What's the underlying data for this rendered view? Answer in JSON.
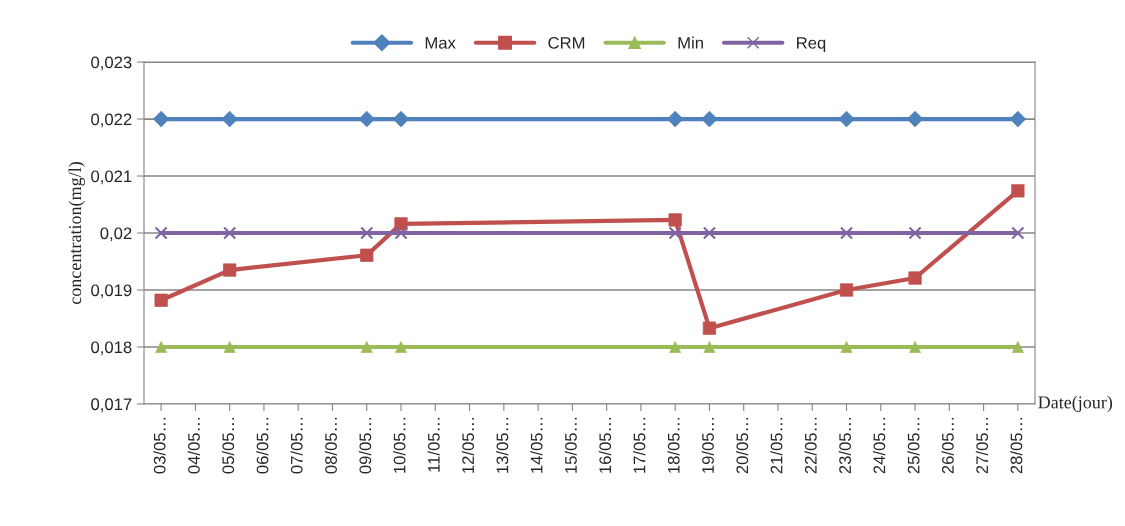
{
  "chart_data": {
    "type": "line",
    "xlabel": "Date(jour)",
    "ylabel": "concentration(mg/l)",
    "categories": [
      "03/05…",
      "04/05…",
      "05/05…",
      "06/05…",
      "07/05…",
      "08/05…",
      "09/05…",
      "10/05…",
      "11/05…",
      "12/05…",
      "13/05…",
      "14/05…",
      "15/05…",
      "16/05…",
      "17/05…",
      "18/05…",
      "19/05…",
      "20/05…",
      "21/05…",
      "22/05…",
      "23/05…",
      "24/05…",
      "25/05…",
      "26/05…",
      "27/05…",
      "28/05…"
    ],
    "series": [
      {
        "name": "Max",
        "color": "#4f81bd",
        "marker": "diamond",
        "values": [
          0.022,
          null,
          0.022,
          null,
          null,
          null,
          0.022,
          0.022,
          null,
          null,
          null,
          null,
          null,
          null,
          null,
          0.022,
          0.022,
          null,
          null,
          null,
          0.022,
          null,
          0.022,
          null,
          null,
          0.022
        ]
      },
      {
        "name": "CRM",
        "color": "#c0504d",
        "marker": "square",
        "values": [
          0.01882,
          null,
          0.01935,
          null,
          null,
          null,
          0.01961,
          0.02016,
          null,
          null,
          null,
          null,
          null,
          null,
          null,
          0.02023,
          0.01833,
          null,
          null,
          null,
          0.019,
          null,
          0.01921,
          null,
          null,
          0.02074
        ]
      },
      {
        "name": "Min",
        "color": "#9bbb59",
        "marker": "triangle",
        "values": [
          0.018,
          null,
          0.018,
          null,
          null,
          null,
          0.018,
          0.018,
          null,
          null,
          null,
          null,
          null,
          null,
          null,
          0.018,
          0.018,
          null,
          null,
          null,
          0.018,
          null,
          0.018,
          null,
          null,
          0.018
        ]
      },
      {
        "name": "Req",
        "color": "#8064a2",
        "marker": "cross",
        "values": [
          0.02,
          null,
          0.02,
          null,
          null,
          null,
          0.02,
          0.02,
          null,
          null,
          null,
          null,
          null,
          null,
          null,
          0.02,
          0.02,
          null,
          null,
          null,
          0.02,
          null,
          0.02,
          null,
          null,
          0.02
        ]
      }
    ],
    "ylim": [
      0.017,
      0.023
    ],
    "yticks": [
      {
        "value": 0.017,
        "label": "0,017"
      },
      {
        "value": 0.018,
        "label": "0,018"
      },
      {
        "value": 0.019,
        "label": "0,019"
      },
      {
        "value": 0.02,
        "label": "0,02"
      },
      {
        "value": 0.021,
        "label": "0,021"
      },
      {
        "value": 0.022,
        "label": "0,022"
      },
      {
        "value": 0.023,
        "label": "0,023"
      }
    ],
    "grid": "y",
    "legend": "top",
    "line_style": "solid"
  }
}
